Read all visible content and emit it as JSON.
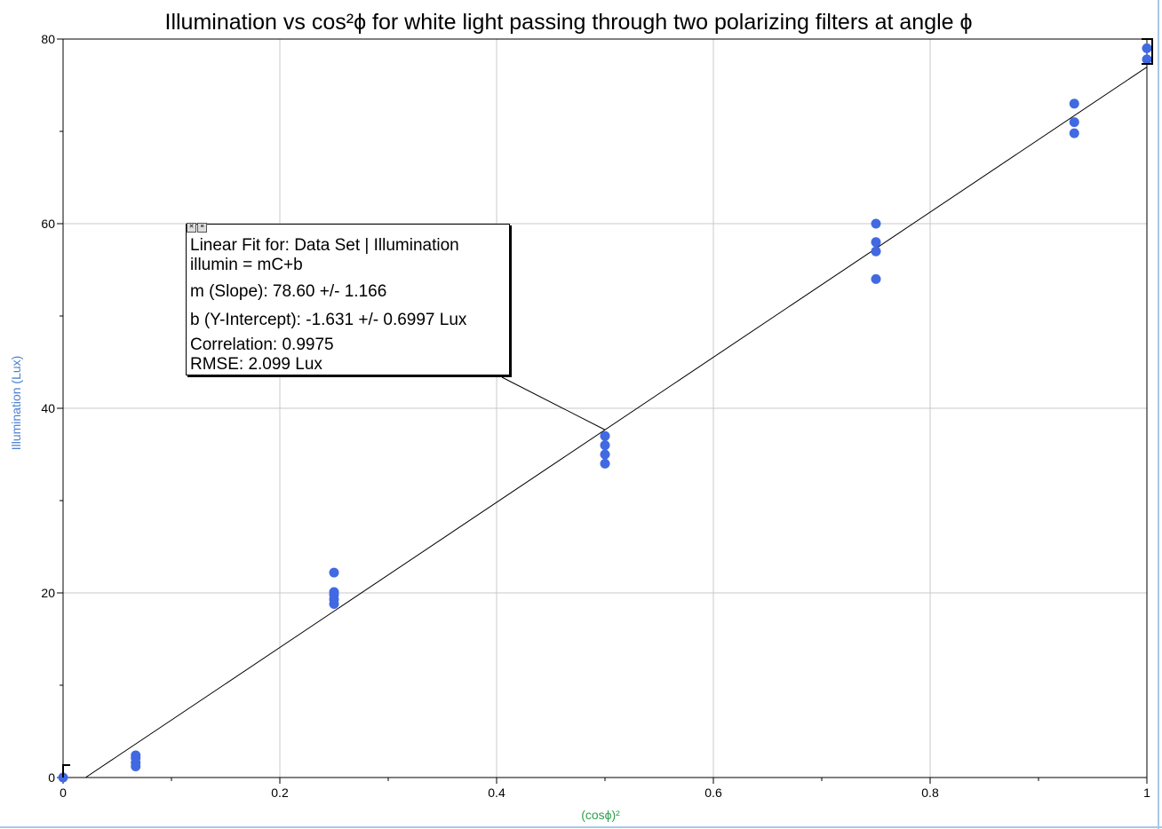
{
  "chart_data": {
    "type": "scatter",
    "title": "Illumination vs cos²ϕ for white light passing through two polarizing filters at angle  ϕ",
    "xlabel": "(cosϕ)²",
    "ylabel": "Illumination (Lux)",
    "xlim": [
      0,
      1
    ],
    "ylim": [
      0,
      80
    ],
    "x_ticks": [
      "0",
      "0.2",
      "0.4",
      "0.6",
      "0.8",
      "1"
    ],
    "y_ticks": [
      "0",
      "20",
      "40",
      "60",
      "80"
    ],
    "grid": true,
    "points": [
      {
        "x": 0.0,
        "y": 0.0
      },
      {
        "x": 0.067,
        "y": 1.2
      },
      {
        "x": 0.067,
        "y": 1.6
      },
      {
        "x": 0.067,
        "y": 2.1
      },
      {
        "x": 0.067,
        "y": 2.4
      },
      {
        "x": 0.25,
        "y": 18.8
      },
      {
        "x": 0.25,
        "y": 19.3
      },
      {
        "x": 0.25,
        "y": 19.8
      },
      {
        "x": 0.25,
        "y": 20.1
      },
      {
        "x": 0.25,
        "y": 22.2
      },
      {
        "x": 0.5,
        "y": 34.0
      },
      {
        "x": 0.5,
        "y": 35.0
      },
      {
        "x": 0.5,
        "y": 36.0
      },
      {
        "x": 0.5,
        "y": 37.0
      },
      {
        "x": 0.75,
        "y": 54.0
      },
      {
        "x": 0.75,
        "y": 57.0
      },
      {
        "x": 0.75,
        "y": 58.0
      },
      {
        "x": 0.75,
        "y": 60.0
      },
      {
        "x": 0.933,
        "y": 69.8
      },
      {
        "x": 0.933,
        "y": 71.0
      },
      {
        "x": 0.933,
        "y": 73.0
      },
      {
        "x": 1.0,
        "y": 77.8
      },
      {
        "x": 1.0,
        "y": 79.0
      }
    ],
    "fit": {
      "slope": 78.6,
      "intercept": -1.631,
      "title": "Linear Fit for: Data Set | Illumination",
      "equation": "illumin = mC+b",
      "slope_text": "m (Slope): 78.60 +/- 1.166",
      "intercept_text": "b (Y-Intercept): -1.631 +/- 0.6997 Lux",
      "correlation_text": "Correlation: 0.9975",
      "rmse_text": "RMSE: 2.099 Lux"
    },
    "colors": {
      "points": "#4169e1",
      "grid": "#c8c8c8",
      "ylabel": "#4a7fd0",
      "xlabel": "#2e9e4e"
    }
  }
}
